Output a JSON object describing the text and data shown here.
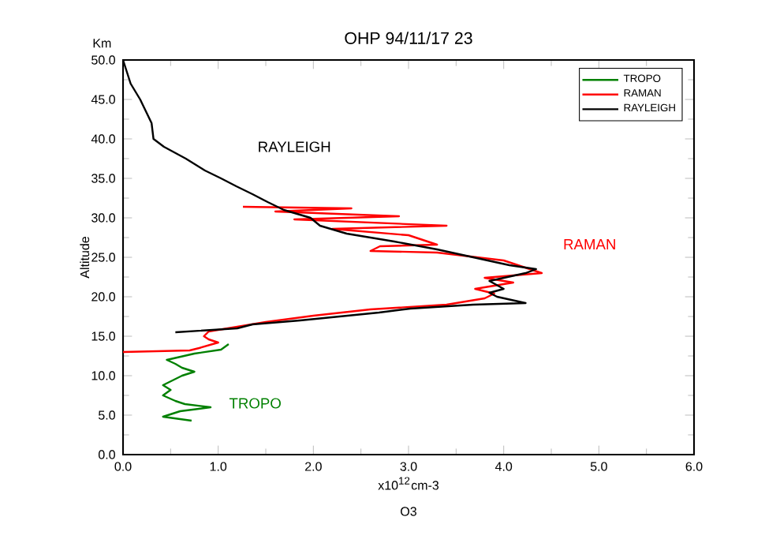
{
  "chart_data": {
    "type": "line",
    "title": "OHP     94/11/17 23",
    "xlabel": "x10$^{12}$cm-3",
    "ylabel": "Altitude",
    "annotations": [
      "Km",
      "O3",
      "RAYLEIGH",
      "RAMAN",
      "TROPO"
    ],
    "xlim": [
      0,
      6
    ],
    "ylim": [
      0,
      50
    ],
    "xticks": [
      {
        "value": 0,
        "label": "0.0"
      },
      {
        "value": 1,
        "label": "1.0"
      },
      {
        "value": 2,
        "label": "2.0"
      },
      {
        "value": 3,
        "label": "3.0"
      },
      {
        "value": 4,
        "label": "4.0"
      },
      {
        "value": 5,
        "label": "5.0"
      },
      {
        "value": 6,
        "label": "6.0"
      }
    ],
    "yticks": [
      {
        "value": 0,
        "label": "0.0"
      },
      {
        "value": 5,
        "label": "5.0"
      },
      {
        "value": 10,
        "label": "10.0"
      },
      {
        "value": 15,
        "label": "15.0"
      },
      {
        "value": 20,
        "label": "20.0"
      },
      {
        "value": 25,
        "label": "25.0"
      },
      {
        "value": 30,
        "label": "30.0"
      },
      {
        "value": 35,
        "label": "35.0"
      },
      {
        "value": 40,
        "label": "40.0"
      },
      {
        "value": 45,
        "label": "45.0"
      },
      {
        "value": 50,
        "label": "50.0"
      }
    ],
    "grid": false,
    "legend": "top right",
    "marker": "none",
    "series": [
      {
        "name": "TROPO",
        "color": "#008000",
        "x": [
          1.11,
          1.03,
          0.75,
          0.46,
          0.55,
          0.62,
          0.75,
          0.62,
          0.42,
          0.5,
          0.42,
          0.55,
          0.65,
          0.92,
          0.6,
          0.42,
          0.72
        ],
        "values": [
          14.0,
          13.3,
          12.8,
          12.0,
          11.5,
          11.0,
          10.5,
          10.0,
          8.8,
          8.2,
          7.5,
          6.8,
          6.4,
          6.0,
          5.5,
          4.8,
          4.3
        ]
      },
      {
        "name": "RAMAN",
        "color": "#ff0000",
        "x": [
          1.26,
          2.4,
          1.6,
          2.9,
          1.8,
          3.4,
          2.2,
          3.0,
          3.3,
          2.7,
          2.6,
          3.3,
          4.0,
          4.4,
          3.8,
          4.1,
          3.7,
          3.9,
          3.8,
          3.4,
          2.6,
          2.0,
          1.5,
          1.2,
          0.9,
          0.85,
          0.9,
          1.0,
          0.8,
          0.7,
          0.0
        ],
        "values": [
          31.4,
          31.2,
          30.8,
          30.2,
          29.8,
          29.0,
          28.6,
          27.8,
          26.6,
          26.4,
          25.8,
          25.6,
          24.6,
          23.0,
          22.4,
          21.8,
          21.0,
          20.4,
          19.8,
          19.0,
          18.4,
          17.6,
          16.8,
          16.2,
          15.6,
          15.0,
          14.6,
          14.2,
          13.5,
          13.2,
          13.0
        ]
      },
      {
        "name": "RAYLEIGH",
        "color": "#000000",
        "x": [
          0,
          0.08,
          0.18,
          0.3,
          0.32,
          0.43,
          0.66,
          0.86,
          1.03,
          1.19,
          1.36,
          1.52,
          1.69,
          1.97,
          2.07,
          2.35,
          2.85,
          3.3,
          3.68,
          4.06,
          4.34,
          4.23,
          3.85,
          4.0,
          3.85,
          3.93,
          4.23,
          3.68,
          3.02,
          2.69,
          1.86,
          1.36,
          1.2,
          0.55
        ],
        "values": [
          50,
          47,
          45,
          42,
          40,
          39,
          37.5,
          36,
          35,
          34,
          33,
          32,
          31,
          30,
          29,
          28,
          27,
          26,
          25,
          24,
          23.5,
          23,
          22,
          21,
          20.5,
          20,
          19.2,
          19,
          18.5,
          18,
          17,
          16.5,
          16,
          15.5
        ]
      }
    ]
  }
}
